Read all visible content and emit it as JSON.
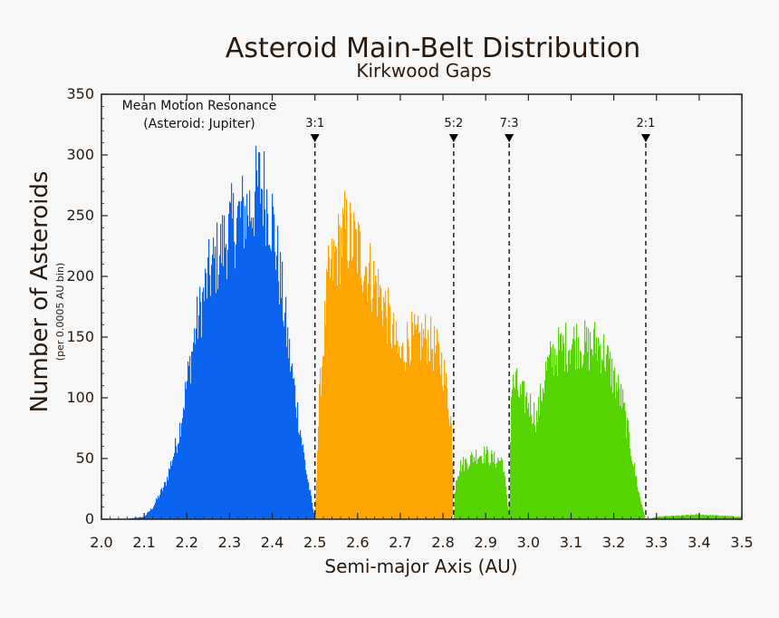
{
  "chart_data": {
    "type": "histogram",
    "title": "Asteroid Main-Belt Distribution",
    "subtitle": "Kirkwood Gaps",
    "xlabel": "Semi-major Axis (AU)",
    "ylabel": "Number of Asteroids",
    "ylabel_sub": "(per 0.0005 AU bin)",
    "xlim": [
      2.0,
      3.5
    ],
    "ylim": [
      0,
      350
    ],
    "x_ticks": [
      2.0,
      2.1,
      2.2,
      2.3,
      2.4,
      2.5,
      2.6,
      2.7,
      2.8,
      2.9,
      3.0,
      3.1,
      3.2,
      3.3,
      3.4,
      3.5
    ],
    "x_tick_labels": [
      "2.0",
      "2.1",
      "2.2",
      "2.3",
      "2.4",
      "2.5",
      "2.6",
      "2.7",
      "2.8",
      "2.9",
      "3.0",
      "3.1",
      "3.2",
      "3.3",
      "3.4",
      "3.5"
    ],
    "y_ticks": [
      0,
      50,
      100,
      150,
      200,
      250,
      300,
      350
    ],
    "y_tick_labels": [
      "0",
      "50",
      "100",
      "150",
      "200",
      "250",
      "300",
      "350"
    ],
    "grid": false,
    "annotation": {
      "line1": "Mean Motion Resonance",
      "line2": "(Asteroid: Jupiter)"
    },
    "resonances": [
      {
        "label": "3:1",
        "x": 2.5
      },
      {
        "label": "5:2",
        "x": 2.825
      },
      {
        "label": "7:3",
        "x": 2.955
      },
      {
        "label": "2:1",
        "x": 3.275
      }
    ],
    "series": [
      {
        "color": "#0a64f0",
        "x": [
          2.05,
          2.1,
          2.12,
          2.15,
          2.18,
          2.2,
          2.22,
          2.25,
          2.28,
          2.3,
          2.32,
          2.35,
          2.37,
          2.38,
          2.4,
          2.42,
          2.44,
          2.46,
          2.48,
          2.5
        ],
        "y": [
          0,
          2,
          10,
          30,
          70,
          115,
          160,
          205,
          230,
          245,
          255,
          265,
          285,
          280,
          255,
          200,
          140,
          90,
          40,
          0
        ]
      },
      {
        "color": "#ffa500",
        "x": [
          2.5,
          2.51,
          2.53,
          2.55,
          2.57,
          2.59,
          2.6,
          2.62,
          2.64,
          2.66,
          2.68,
          2.7,
          2.72,
          2.74,
          2.76,
          2.78,
          2.8,
          2.82,
          2.825
        ],
        "y": [
          0,
          100,
          200,
          225,
          245,
          235,
          230,
          215,
          200,
          185,
          160,
          135,
          155,
          150,
          155,
          145,
          130,
          80,
          0
        ]
      },
      {
        "color": "#55d400",
        "x": [
          2.825,
          2.83,
          2.84,
          2.86,
          2.88,
          2.9,
          2.92,
          2.94,
          2.955,
          2.96,
          2.97,
          2.98,
          3.0,
          3.02,
          3.04,
          3.06,
          3.08,
          3.1,
          3.12,
          3.14,
          3.16,
          3.18,
          3.2,
          3.22,
          3.24,
          3.26,
          3.275
        ],
        "y": [
          0,
          35,
          45,
          50,
          55,
          55,
          50,
          50,
          0,
          110,
          115,
          105,
          100,
          85,
          125,
          140,
          145,
          150,
          150,
          145,
          150,
          140,
          120,
          100,
          60,
          20,
          0
        ]
      },
      {
        "color": "#55d400",
        "x": [
          3.28,
          3.3,
          3.35,
          3.4,
          3.45,
          3.5
        ],
        "y": [
          0,
          2,
          3,
          4,
          3,
          2
        ]
      }
    ]
  }
}
